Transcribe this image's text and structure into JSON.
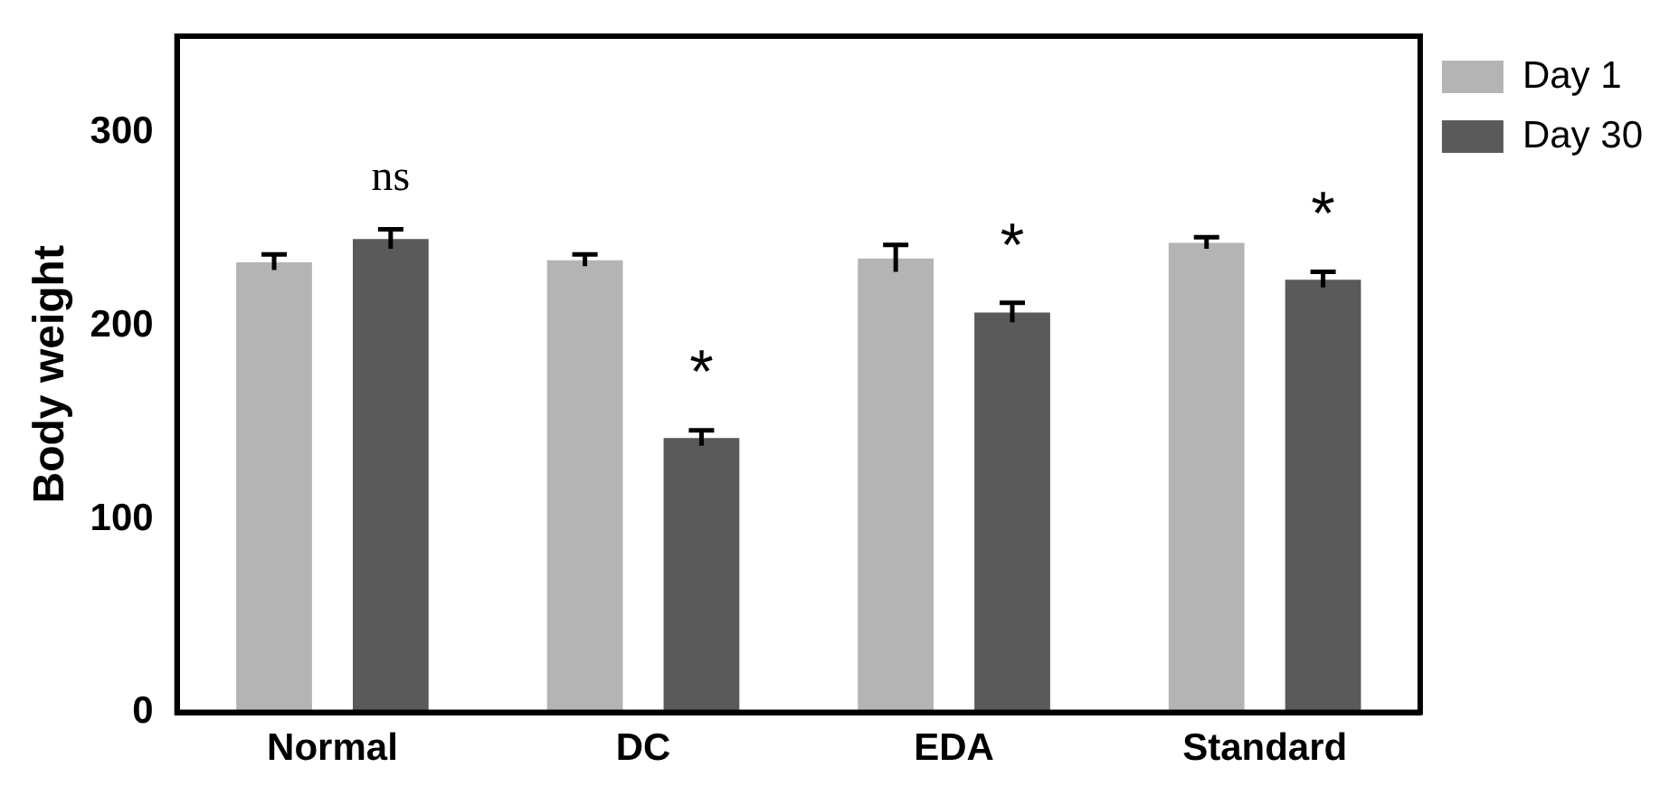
{
  "chart_data": {
    "type": "bar",
    "ylabel": "Body weight",
    "categories": [
      "Normal",
      "DC",
      "EDA",
      "Standard"
    ],
    "series": [
      {
        "name": "Day 1",
        "color": "#b4b4b4",
        "values": [
          233,
          234,
          235,
          243
        ],
        "errors": [
          4,
          3,
          7,
          3
        ]
      },
      {
        "name": "Day 30",
        "color": "#5a5a5a",
        "values": [
          245,
          142,
          207,
          224
        ],
        "errors": [
          5,
          4,
          5,
          4
        ]
      }
    ],
    "ylim": [
      0,
      350
    ],
    "yticks": [
      0,
      100,
      200,
      300
    ],
    "grid": false,
    "legend": "top right",
    "annotations": [
      "ns",
      "*",
      "*",
      "*"
    ]
  }
}
